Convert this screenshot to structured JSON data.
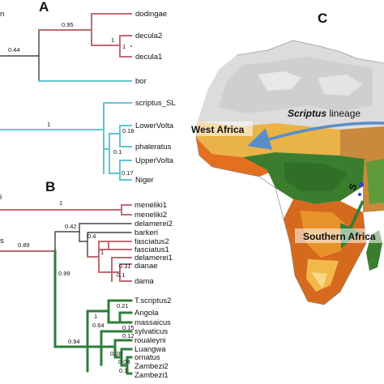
{
  "panels": {
    "a": "A",
    "b": "B",
    "c": "C"
  },
  "edge_text": {
    "a_left": "n",
    "b_left1": "i",
    "b_left2": "s"
  },
  "colors": {
    "red_clade": "#c06a70",
    "cyan_clade": "#5fc6d3",
    "green_clade": "#2e7d3a",
    "black_branch": "#222222"
  },
  "tree_a": {
    "support": {
      "root": "0.44",
      "dod": "0.95",
      "dec": "1",
      "dec12": "1",
      "scr": "1",
      "lv": "0.18",
      "lvp": "0.1",
      "uvn": "0.17"
    },
    "tips": [
      "dodingae",
      "decula2",
      "decula1",
      "bor",
      "scriptus_SL",
      "LowerVolta",
      "phaleratus",
      "UpperVolta",
      "Niger"
    ]
  },
  "tree_b": {
    "support": {
      "root": "0.89",
      "men": "1",
      "grp": "0.99",
      "del": "0.42",
      "bar": "0.4",
      "fas": "1",
      "del1": "0.31",
      "dama": "0.1",
      "green": "0.94",
      "ang": "0.21",
      "ang2": "1",
      "mid": "0.64",
      "syl": "0.15",
      "rou": "0.12",
      "lua": "0.08",
      "orn": "0.04",
      "zam": "0.1"
    },
    "tips": [
      "meneliki1",
      "meneliki2",
      "delamerei2",
      "barkeri",
      "fasciatus2",
      "fasciatus1",
      "delamerei1",
      "dianae",
      "dama",
      "T.scriptus2",
      "Angola",
      "massaicus",
      "sylvaticus",
      "roualeyni",
      "Luangwa",
      "ornatus",
      "Zambezi2",
      "Zambezi1"
    ]
  },
  "map": {
    "west_africa": "West Africa",
    "lineage_italic": "Scriptus",
    "lineage_rest": " lineage",
    "southern_africa": "Southern Africa",
    "side_fragment": "S"
  }
}
